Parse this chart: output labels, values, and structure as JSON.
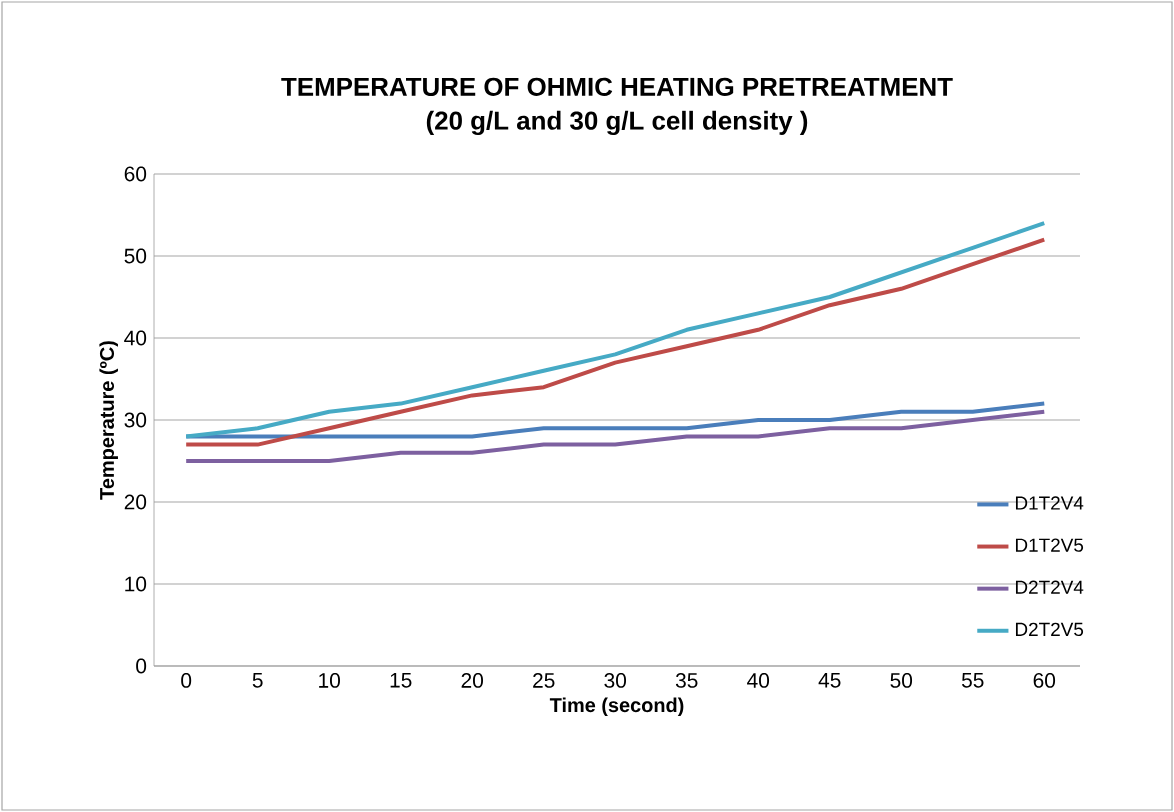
{
  "chart_data": {
    "type": "line",
    "title": "TEMPERATURE  OF  OHMIC HEATING  PRETREATMENT",
    "subtitle": "(20  g/L and 30 g/L cell density )",
    "xlabel": "Time (second)",
    "ylabel": "Temperature (ºC)",
    "categories": [
      "0",
      "5",
      "10",
      "15",
      "20",
      "25",
      "30",
      "35",
      "40",
      "45",
      "50",
      "55",
      "60"
    ],
    "series": [
      {
        "name": "D1T2V4",
        "color": "#4a7ebb",
        "values": [
          28,
          28,
          28,
          28,
          28,
          29,
          29,
          29,
          30,
          30,
          31,
          31,
          32
        ]
      },
      {
        "name": "D1T2V5",
        "color": "#be4b48",
        "values": [
          27,
          27,
          29,
          31,
          33,
          34,
          37,
          39,
          41,
          44,
          46,
          49,
          52
        ]
      },
      {
        "name": "D2T2V4",
        "color": "#7d60a0",
        "values": [
          25,
          25,
          25,
          26,
          26,
          27,
          27,
          28,
          28,
          29,
          29,
          30,
          31
        ]
      },
      {
        "name": "D2T2V5",
        "color": "#46aac5",
        "values": [
          28,
          29,
          31,
          32,
          34,
          36,
          38,
          41,
          43,
          45,
          48,
          51,
          54
        ]
      }
    ],
    "ylim": [
      0,
      60
    ],
    "yticks": [
      0,
      10,
      20,
      30,
      40,
      50,
      60
    ],
    "grid": "y",
    "legend": "right",
    "marker": "none",
    "line_style": "solid"
  }
}
